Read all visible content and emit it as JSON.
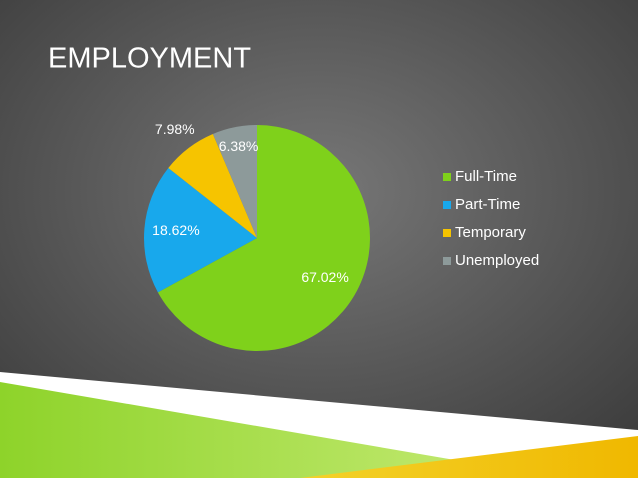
{
  "chart_data": {
    "type": "pie",
    "title": "EMPLOYMENT",
    "categories": [
      "Full-Time",
      "Part-Time",
      "Temporary",
      "Unemployed"
    ],
    "values": [
      67.02,
      18.62,
      7.98,
      6.38
    ],
    "value_labels": [
      "67.02%",
      "18.62%",
      "7.98%",
      "6.38%"
    ],
    "colors": [
      "#7fd11b",
      "#18a8ec",
      "#f6c400",
      "#8d9a9a"
    ],
    "legend": "right"
  }
}
